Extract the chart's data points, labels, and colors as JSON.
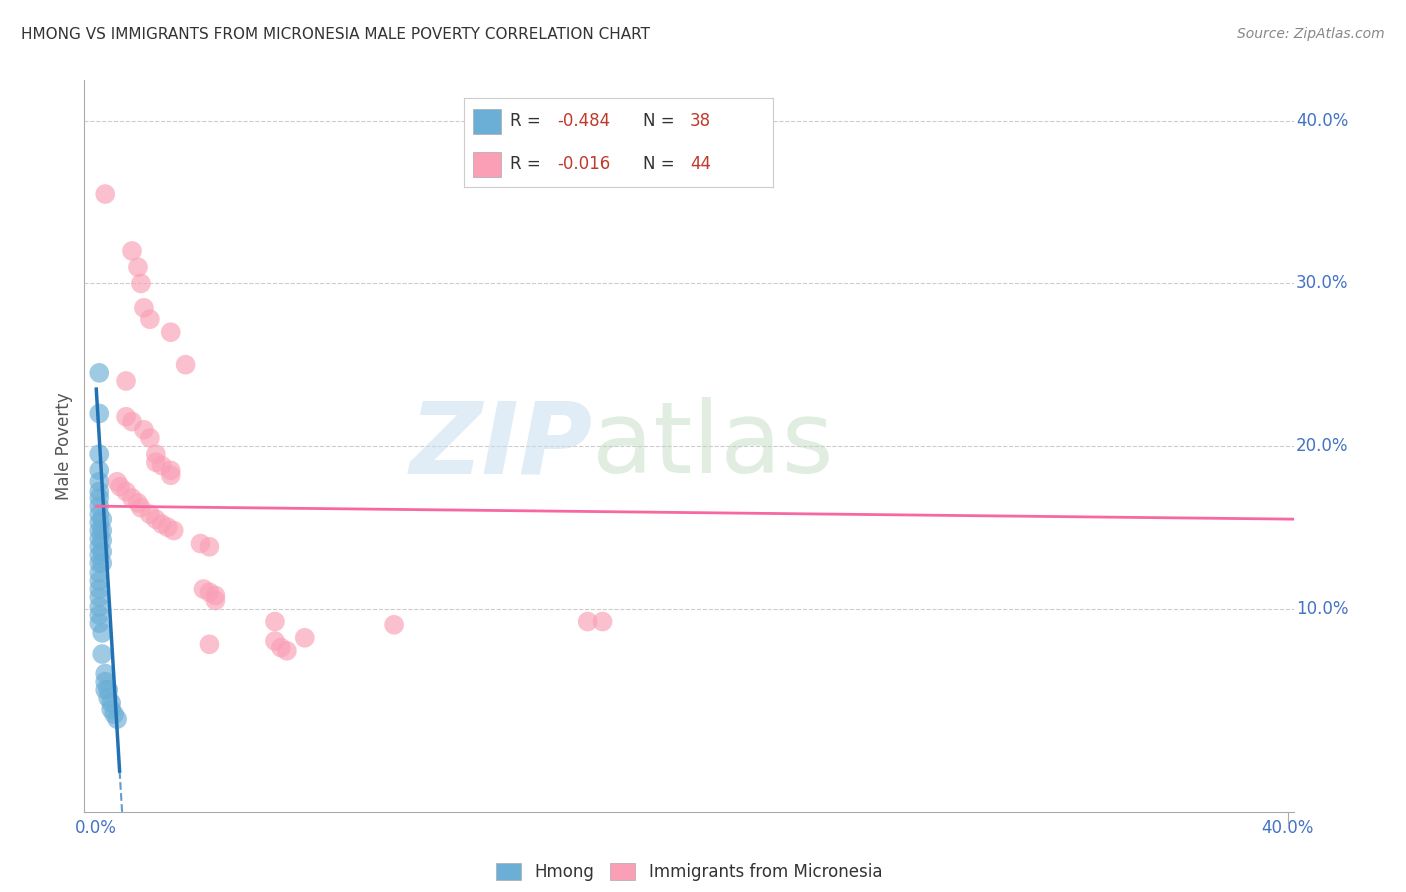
{
  "title": "HMONG VS IMMIGRANTS FROM MICRONESIA MALE POVERTY CORRELATION CHART",
  "source": "Source: ZipAtlas.com",
  "ylabel": "Male Poverty",
  "right_yticks": [
    "40.0%",
    "30.0%",
    "20.0%",
    "10.0%"
  ],
  "right_ytick_vals": [
    0.4,
    0.3,
    0.2,
    0.1
  ],
  "blue_color": "#6baed6",
  "pink_color": "#fa9fb5",
  "blue_line_color": "#2171b5",
  "pink_line_color": "#f768a1",
  "blue_scatter": [
    [
      0.001,
      0.245
    ],
    [
      0.001,
      0.22
    ],
    [
      0.001,
      0.195
    ],
    [
      0.001,
      0.185
    ],
    [
      0.001,
      0.178
    ],
    [
      0.001,
      0.172
    ],
    [
      0.001,
      0.168
    ],
    [
      0.001,
      0.163
    ],
    [
      0.001,
      0.158
    ],
    [
      0.001,
      0.153
    ],
    [
      0.001,
      0.148
    ],
    [
      0.001,
      0.143
    ],
    [
      0.001,
      0.138
    ],
    [
      0.001,
      0.133
    ],
    [
      0.001,
      0.128
    ],
    [
      0.001,
      0.122
    ],
    [
      0.001,
      0.117
    ],
    [
      0.001,
      0.112
    ],
    [
      0.001,
      0.107
    ],
    [
      0.001,
      0.101
    ],
    [
      0.001,
      0.096
    ],
    [
      0.001,
      0.091
    ],
    [
      0.002,
      0.155
    ],
    [
      0.002,
      0.148
    ],
    [
      0.002,
      0.142
    ],
    [
      0.002,
      0.135
    ],
    [
      0.002,
      0.128
    ],
    [
      0.002,
      0.085
    ],
    [
      0.002,
      0.072
    ],
    [
      0.003,
      0.06
    ],
    [
      0.003,
      0.055
    ],
    [
      0.003,
      0.05
    ],
    [
      0.004,
      0.05
    ],
    [
      0.004,
      0.045
    ],
    [
      0.005,
      0.042
    ],
    [
      0.005,
      0.038
    ],
    [
      0.006,
      0.035
    ],
    [
      0.007,
      0.032
    ]
  ],
  "pink_scatter": [
    [
      0.003,
      0.355
    ],
    [
      0.012,
      0.32
    ],
    [
      0.014,
      0.31
    ],
    [
      0.015,
      0.3
    ],
    [
      0.016,
      0.285
    ],
    [
      0.018,
      0.278
    ],
    [
      0.025,
      0.27
    ],
    [
      0.03,
      0.25
    ],
    [
      0.01,
      0.24
    ],
    [
      0.01,
      0.218
    ],
    [
      0.012,
      0.215
    ],
    [
      0.016,
      0.21
    ],
    [
      0.018,
      0.205
    ],
    [
      0.02,
      0.195
    ],
    [
      0.02,
      0.19
    ],
    [
      0.022,
      0.188
    ],
    [
      0.025,
      0.185
    ],
    [
      0.025,
      0.182
    ],
    [
      0.007,
      0.178
    ],
    [
      0.008,
      0.175
    ],
    [
      0.01,
      0.172
    ],
    [
      0.012,
      0.168
    ],
    [
      0.014,
      0.165
    ],
    [
      0.015,
      0.162
    ],
    [
      0.018,
      0.158
    ],
    [
      0.02,
      0.155
    ],
    [
      0.022,
      0.152
    ],
    [
      0.024,
      0.15
    ],
    [
      0.026,
      0.148
    ],
    [
      0.035,
      0.14
    ],
    [
      0.038,
      0.138
    ],
    [
      0.036,
      0.112
    ],
    [
      0.038,
      0.11
    ],
    [
      0.04,
      0.108
    ],
    [
      0.04,
      0.105
    ],
    [
      0.038,
      0.078
    ],
    [
      0.06,
      0.092
    ],
    [
      0.1,
      0.09
    ],
    [
      0.17,
      0.092
    ],
    [
      0.07,
      0.082
    ],
    [
      0.06,
      0.08
    ],
    [
      0.062,
      0.076
    ],
    [
      0.064,
      0.074
    ],
    [
      0.165,
      0.092
    ]
  ],
  "xmin": -0.004,
  "xmax": 0.402,
  "ymin": -0.025,
  "ymax": 0.425,
  "blue_trend_x0": 0.0,
  "blue_trend_y0": 0.235,
  "blue_trend_slope": -30.0,
  "pink_trend_x0": 0.0,
  "pink_trend_y0": 0.163,
  "pink_trend_x1": 0.402,
  "pink_trend_y1": 0.155
}
